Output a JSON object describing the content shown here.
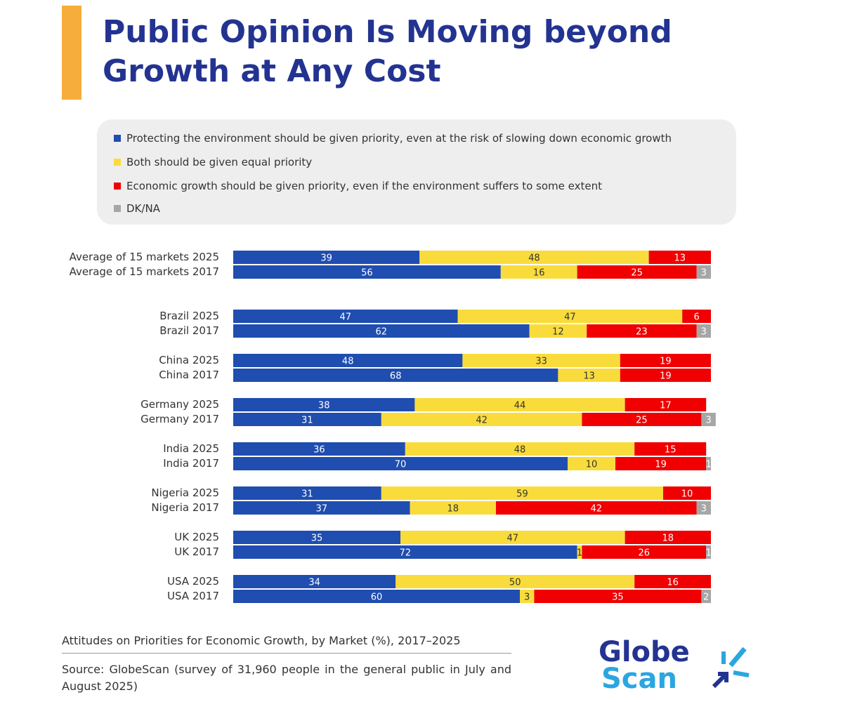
{
  "title": "Public Opinion Is Moving beyond Growth at Any Cost",
  "chart_data": {
    "type": "bar",
    "orientation": "horizontal",
    "stacked": true,
    "categories": [
      "Average of 15 markets 2025",
      "Average of 15 markets 2017",
      "Brazil 2025",
      "Brazil 2017",
      "China 2025",
      "China 2017",
      "Germany 2025",
      "Germany 2017",
      "India 2025",
      "India 2017",
      "Nigeria 2025",
      "Nigeria 2017",
      "UK 2025",
      "UK 2017",
      "USA 2025",
      "USA 2017"
    ],
    "series": [
      {
        "name": "Protecting the environment should be given priority, even at the risk of slowing down economic growth",
        "color": "#1f4db0",
        "values": [
          39,
          56,
          47,
          62,
          48,
          68,
          38,
          31,
          36,
          70,
          31,
          37,
          35,
          72,
          34,
          60
        ]
      },
      {
        "name": "Both should be given equal priority",
        "color": "#f9dc3b",
        "values": [
          48,
          16,
          47,
          12,
          33,
          13,
          44,
          42,
          48,
          10,
          59,
          18,
          47,
          1,
          50,
          3
        ]
      },
      {
        "name": "Economic growth should be given priority, even if the environment suffers to some extent",
        "color": "#f00000",
        "values": [
          13,
          25,
          6,
          23,
          19,
          19,
          17,
          25,
          15,
          19,
          10,
          42,
          18,
          26,
          16,
          35
        ]
      },
      {
        "name": "DK/NA",
        "color": "#a6a6a6",
        "values": [
          0,
          3,
          0,
          3,
          0,
          0,
          0,
          3,
          0,
          1,
          0,
          3,
          0,
          1,
          0,
          2
        ]
      }
    ],
    "legend": "top"
  },
  "footer": {
    "caption": "Attitudes on Priorities for Economic Growth, by Market (%), 2017–2025",
    "source": "Source: GlobeScan (survey of 31,960 people in the general public in July and August 2025)"
  },
  "logo": {
    "line1": "Globe",
    "line2": "Scan"
  }
}
